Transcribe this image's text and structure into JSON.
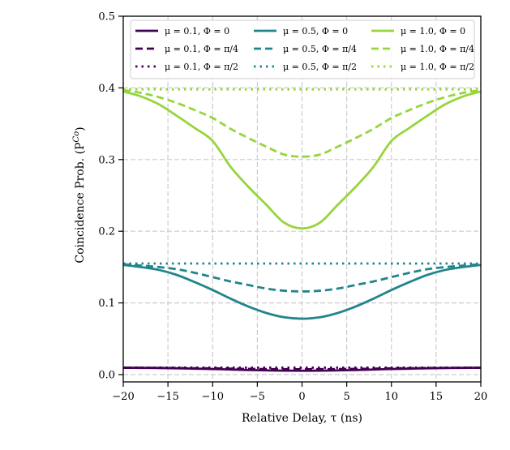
{
  "chart_data": {
    "type": "line",
    "title": "",
    "xlabel": "Relative Delay, τ (ns)",
    "ylabel": "Coincidence Prob. (P",
    "ylabel_superscript": "Co",
    "ylabel_close": ")",
    "xlim": [
      -20,
      20
    ],
    "ylim": [
      -0.01,
      0.5
    ],
    "xticks": [
      -20,
      -15,
      -10,
      -5,
      0,
      5,
      10,
      15,
      20
    ],
    "xtick_labels": [
      "−20",
      "−15",
      "−10",
      "−5",
      "0",
      "5",
      "10",
      "15",
      "20"
    ],
    "yticks": [
      0.0,
      0.1,
      0.2,
      0.3,
      0.4,
      0.5
    ],
    "ytick_labels": [
      "0.0",
      "0.1",
      "0.2",
      "0.3",
      "0.4",
      "0.5"
    ],
    "grid": true,
    "legend_placement": "top",
    "legend_columns": 3,
    "x": [
      -20,
      -18,
      -16,
      -14,
      -12,
      -10,
      -8,
      -6,
      -4,
      -2,
      0,
      2,
      4,
      6,
      8,
      10,
      12,
      14,
      16,
      18,
      20
    ],
    "series": [
      {
        "name": "μ = 0.1, Φ = 0",
        "color": "#440154",
        "style": "solid",
        "values": [
          0.0096,
          0.0094,
          0.0092,
          0.0088,
          0.0083,
          0.0078,
          0.0071,
          0.0064,
          0.0059,
          0.0055,
          0.0054,
          0.0055,
          0.0059,
          0.0064,
          0.0071,
          0.0078,
          0.0083,
          0.0088,
          0.0092,
          0.0094,
          0.0096
        ]
      },
      {
        "name": "μ = 0.1, Φ = π/4",
        "color": "#440154",
        "style": "dashed",
        "values": [
          0.0096,
          0.0095,
          0.0094,
          0.0092,
          0.0089,
          0.0087,
          0.0083,
          0.008,
          0.0077,
          0.0076,
          0.0075,
          0.0076,
          0.0077,
          0.008,
          0.0083,
          0.0087,
          0.0089,
          0.0092,
          0.0094,
          0.0095,
          0.0096
        ]
      },
      {
        "name": "μ = 0.1, Φ = π/2",
        "color": "#440154",
        "style": "dotted",
        "values": [
          0.0097,
          0.0097,
          0.0097,
          0.0097,
          0.0097,
          0.0097,
          0.0097,
          0.0097,
          0.0097,
          0.0097,
          0.0097,
          0.0097,
          0.0097,
          0.0097,
          0.0097,
          0.0097,
          0.0097,
          0.0097,
          0.0097,
          0.0097,
          0.0097
        ]
      },
      {
        "name": "μ = 0.5, Φ = 0",
        "color": "#21858c",
        "style": "solid",
        "values": [
          0.153,
          0.15,
          0.146,
          0.139,
          0.129,
          0.118,
          0.106,
          0.095,
          0.086,
          0.08,
          0.078,
          0.08,
          0.086,
          0.095,
          0.106,
          0.118,
          0.129,
          0.139,
          0.146,
          0.15,
          0.153
        ]
      },
      {
        "name": "μ = 0.5, Φ = π/4",
        "color": "#21858c",
        "style": "dashed",
        "values": [
          0.154,
          0.152,
          0.15,
          0.147,
          0.142,
          0.136,
          0.13,
          0.125,
          0.12,
          0.117,
          0.116,
          0.117,
          0.12,
          0.125,
          0.13,
          0.136,
          0.142,
          0.147,
          0.15,
          0.152,
          0.154
        ]
      },
      {
        "name": "μ = 0.5, Φ = π/2",
        "color": "#21858c",
        "style": "dotted",
        "values": [
          0.155,
          0.155,
          0.155,
          0.155,
          0.155,
          0.155,
          0.155,
          0.155,
          0.155,
          0.155,
          0.155,
          0.155,
          0.155,
          0.155,
          0.155,
          0.155,
          0.155,
          0.155,
          0.155,
          0.155,
          0.155
        ]
      },
      {
        "name": "μ = 1.0, Φ = 0",
        "color": "#97d53d",
        "style": "solid",
        "values": [
          0.395,
          0.388,
          0.377,
          0.361,
          0.344,
          0.326,
          0.29,
          0.262,
          0.237,
          0.212,
          0.204,
          0.212,
          0.237,
          0.262,
          0.29,
          0.326,
          0.344,
          0.361,
          0.377,
          0.388,
          0.395
        ]
      },
      {
        "name": "μ = 1.0, Φ = π/4",
        "color": "#97d53d",
        "style": "dashed",
        "values": [
          0.397,
          0.393,
          0.387,
          0.379,
          0.369,
          0.358,
          0.343,
          0.33,
          0.318,
          0.307,
          0.304,
          0.307,
          0.318,
          0.33,
          0.343,
          0.358,
          0.369,
          0.379,
          0.387,
          0.393,
          0.397
        ]
      },
      {
        "name": "μ = 1.0, Φ = π/2",
        "color": "#97d53d",
        "style": "dotted",
        "values": [
          0.398,
          0.398,
          0.398,
          0.398,
          0.398,
          0.398,
          0.398,
          0.398,
          0.398,
          0.398,
          0.398,
          0.398,
          0.398,
          0.398,
          0.398,
          0.398,
          0.398,
          0.398,
          0.398,
          0.398,
          0.398
        ]
      }
    ]
  }
}
